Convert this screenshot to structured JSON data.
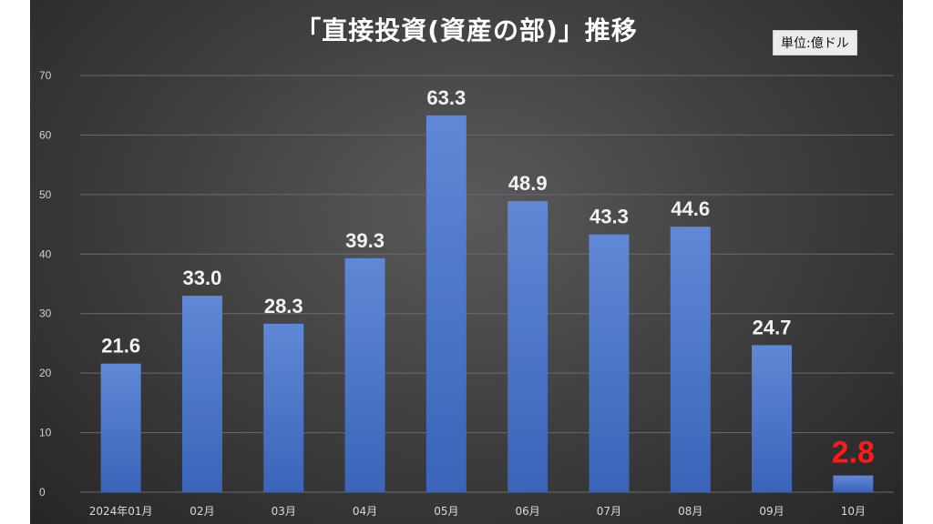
{
  "chart_data": {
    "type": "bar",
    "title": "「直接投資(資産の部)」推移",
    "unit_label": "単位:億ドル",
    "categories": [
      "2024年01月",
      "02月",
      "03月",
      "04月",
      "05月",
      "06月",
      "07月",
      "08月",
      "09月",
      "10月"
    ],
    "values": [
      21.6,
      33.0,
      28.3,
      39.3,
      63.3,
      48.9,
      43.3,
      44.6,
      24.7,
      2.8
    ],
    "value_labels": [
      "21.6",
      "33.0",
      "28.3",
      "39.3",
      "63.3",
      "48.9",
      "43.3",
      "44.6",
      "24.7",
      "2.8"
    ],
    "highlight_index": 9,
    "highlight_color": "#ff1a1a",
    "bar_color": "#4472c4",
    "background_color": "#3c3c3c",
    "ylim": [
      0,
      70
    ],
    "yticks": [
      0,
      10,
      20,
      30,
      40,
      50,
      60,
      70
    ],
    "grid": true,
    "legend": "none",
    "xlabel": "",
    "ylabel": ""
  }
}
